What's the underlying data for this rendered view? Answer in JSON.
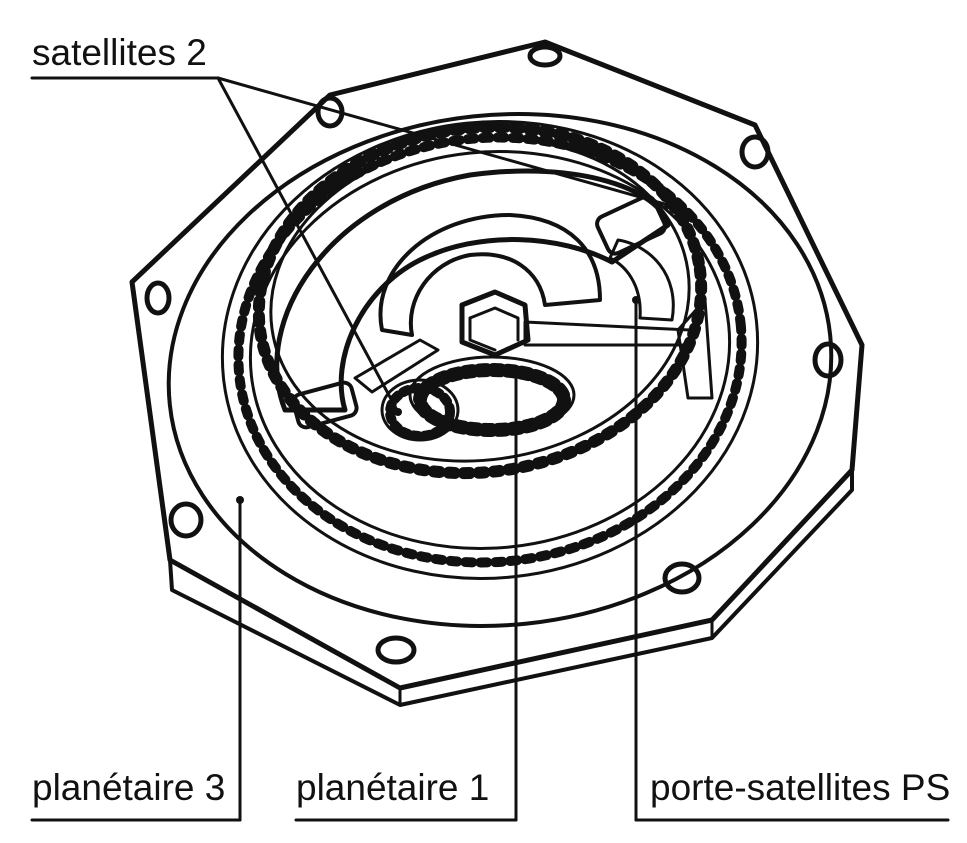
{
  "labels": {
    "satellites": "satellites 2",
    "planetaire3": "planétaire 3",
    "planetaire1": "planétaire 1",
    "porte_satellites": "porte-satellites PS"
  },
  "colors": {
    "ink": "#111111",
    "paper": "#ffffff",
    "shade": "#bdbdbd"
  }
}
